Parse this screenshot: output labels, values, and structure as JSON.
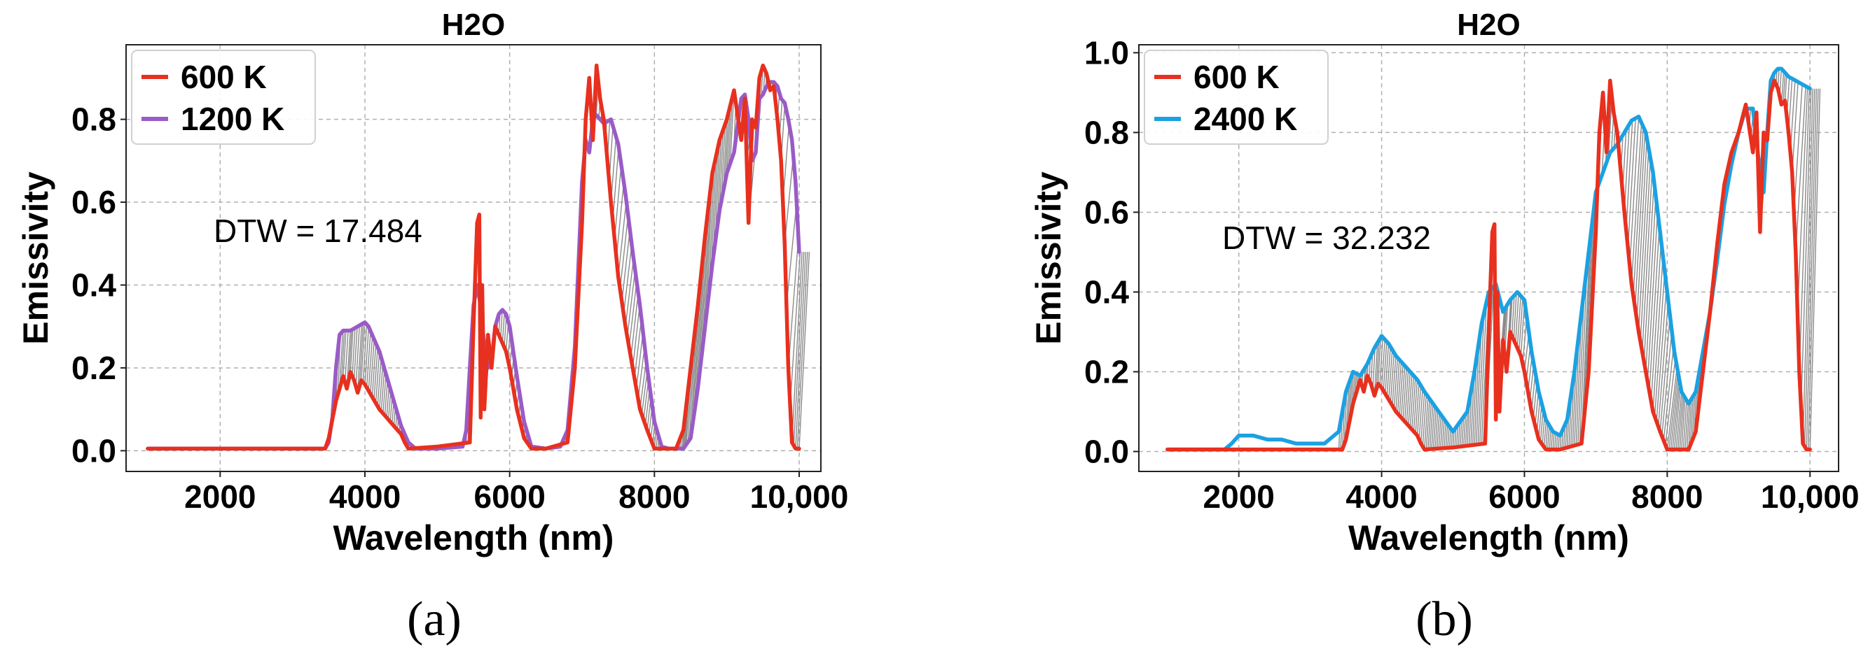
{
  "chart_data": [
    {
      "type": "line",
      "panel_label": "(a)",
      "title": "H2O",
      "xlabel": "Wavelength (nm)",
      "ylabel": "Emissivity",
      "xlim": [
        700,
        10300
      ],
      "ylim": [
        -0.05,
        0.98
      ],
      "xticks": [
        2000,
        4000,
        6000,
        8000,
        10000
      ],
      "xtick_labels": [
        "2000",
        "4000",
        "6000",
        "8000",
        "10,000"
      ],
      "yticks": [
        0.0,
        0.2,
        0.4,
        0.6,
        0.8
      ],
      "ytick_labels": [
        "0.0",
        "0.2",
        "0.4",
        "0.6",
        "0.8"
      ],
      "grid": true,
      "legend_position": "top-left",
      "annotation": "DTW = 17.484",
      "series": [
        {
          "name": "600 K",
          "color": "#e8301e",
          "x": [
            1000,
            2000,
            3000,
            3450,
            3500,
            3600,
            3700,
            3750,
            3800,
            3850,
            3900,
            3950,
            4000,
            4100,
            4200,
            4300,
            4400,
            4500,
            4550,
            4600,
            5000,
            5450,
            5500,
            5550,
            5580,
            5600,
            5620,
            5650,
            5700,
            5750,
            5800,
            5850,
            5900,
            5950,
            6000,
            6100,
            6200,
            6300,
            6500,
            6800,
            6900,
            7000,
            7050,
            7100,
            7150,
            7200,
            7250,
            7300,
            7350,
            7400,
            7500,
            7600,
            7700,
            7800,
            7900,
            8000,
            8100,
            8200,
            8300,
            8400,
            8500,
            8600,
            8700,
            8800,
            8900,
            9000,
            9100,
            9200,
            9250,
            9300,
            9350,
            9400,
            9450,
            9500,
            9550,
            9600,
            9650,
            9700,
            9750,
            9800,
            9850,
            9900,
            9950,
            10000
          ],
          "y": [
            0.005,
            0.005,
            0.005,
            0.005,
            0.03,
            0.12,
            0.18,
            0.15,
            0.19,
            0.17,
            0.14,
            0.17,
            0.16,
            0.13,
            0.1,
            0.08,
            0.06,
            0.04,
            0.02,
            0.005,
            0.01,
            0.02,
            0.3,
            0.55,
            0.57,
            0.08,
            0.4,
            0.1,
            0.28,
            0.2,
            0.3,
            0.28,
            0.26,
            0.24,
            0.2,
            0.1,
            0.03,
            0.005,
            0.005,
            0.02,
            0.2,
            0.55,
            0.8,
            0.9,
            0.75,
            0.93,
            0.85,
            0.8,
            0.7,
            0.6,
            0.42,
            0.3,
            0.2,
            0.1,
            0.05,
            0.005,
            0.005,
            0.005,
            0.005,
            0.05,
            0.2,
            0.35,
            0.52,
            0.67,
            0.75,
            0.8,
            0.87,
            0.75,
            0.85,
            0.55,
            0.8,
            0.78,
            0.9,
            0.93,
            0.91,
            0.87,
            0.88,
            0.8,
            0.7,
            0.5,
            0.2,
            0.02,
            0.005,
            0.005
          ]
        },
        {
          "name": "1200 K",
          "color": "#9a5bc7",
          "x": [
            1000,
            2000,
            3000,
            3450,
            3500,
            3550,
            3600,
            3650,
            3700,
            3800,
            3900,
            4000,
            4050,
            4100,
            4200,
            4300,
            4400,
            4500,
            4600,
            4700,
            5000,
            5350,
            5400,
            5450,
            5500,
            5550,
            5600,
            5650,
            5700,
            5750,
            5800,
            5850,
            5900,
            5950,
            6000,
            6100,
            6200,
            6300,
            6500,
            6700,
            6800,
            6900,
            7000,
            7050,
            7100,
            7150,
            7200,
            7300,
            7400,
            7500,
            7600,
            7700,
            7800,
            7900,
            8000,
            8100,
            8200,
            8300,
            8400,
            8500,
            8600,
            8700,
            8800,
            8900,
            9000,
            9100,
            9200,
            9250,
            9300,
            9350,
            9400,
            9450,
            9500,
            9550,
            9600,
            9650,
            9700,
            9750,
            9800,
            9850,
            9900,
            9950,
            10000
          ],
          "y": [
            0.005,
            0.005,
            0.005,
            0.005,
            0.02,
            0.08,
            0.2,
            0.28,
            0.29,
            0.29,
            0.3,
            0.31,
            0.3,
            0.28,
            0.24,
            0.18,
            0.12,
            0.06,
            0.02,
            0.005,
            0.005,
            0.01,
            0.05,
            0.2,
            0.35,
            0.4,
            0.35,
            0.25,
            0.2,
            0.22,
            0.3,
            0.33,
            0.34,
            0.33,
            0.3,
            0.18,
            0.07,
            0.01,
            0.005,
            0.01,
            0.05,
            0.25,
            0.65,
            0.75,
            0.72,
            0.8,
            0.81,
            0.79,
            0.8,
            0.74,
            0.62,
            0.48,
            0.35,
            0.2,
            0.07,
            0.01,
            0.005,
            0.005,
            0.005,
            0.03,
            0.15,
            0.3,
            0.45,
            0.58,
            0.67,
            0.72,
            0.85,
            0.86,
            0.8,
            0.7,
            0.72,
            0.85,
            0.86,
            0.88,
            0.89,
            0.89,
            0.88,
            0.85,
            0.84,
            0.8,
            0.75,
            0.65,
            0.48
          ]
        }
      ]
    },
    {
      "type": "line",
      "panel_label": "(b)",
      "title": "H2O",
      "xlabel": "Wavelength (nm)",
      "ylabel": "Emissivity",
      "xlim": [
        600,
        10400
      ],
      "ylim": [
        -0.05,
        1.02
      ],
      "xticks": [
        2000,
        4000,
        6000,
        8000,
        10000
      ],
      "xtick_labels": [
        "2000",
        "4000",
        "6000",
        "8000",
        "10,000"
      ],
      "yticks": [
        0.0,
        0.2,
        0.4,
        0.6,
        0.8,
        1.0
      ],
      "ytick_labels": [
        "0.0",
        "0.2",
        "0.4",
        "0.6",
        "0.8",
        "1.0"
      ],
      "grid": true,
      "legend_position": "top-left",
      "annotation": "DTW = 32.232",
      "series": [
        {
          "name": "600 K",
          "color": "#e8301e",
          "x": [
            1000,
            2000,
            3000,
            3450,
            3500,
            3600,
            3700,
            3750,
            3800,
            3850,
            3900,
            3950,
            4000,
            4100,
            4200,
            4300,
            4400,
            4500,
            4550,
            4600,
            5000,
            5450,
            5500,
            5550,
            5580,
            5600,
            5620,
            5650,
            5700,
            5750,
            5800,
            5850,
            5900,
            5950,
            6000,
            6100,
            6200,
            6300,
            6500,
            6800,
            6900,
            7000,
            7050,
            7100,
            7150,
            7200,
            7250,
            7300,
            7350,
            7400,
            7500,
            7600,
            7700,
            7800,
            7900,
            8000,
            8100,
            8200,
            8300,
            8400,
            8500,
            8600,
            8700,
            8800,
            8900,
            9000,
            9100,
            9200,
            9250,
            9300,
            9350,
            9400,
            9450,
            9500,
            9550,
            9600,
            9650,
            9700,
            9750,
            9800,
            9850,
            9900,
            9950,
            10000
          ],
          "y": [
            0.005,
            0.005,
            0.005,
            0.005,
            0.03,
            0.12,
            0.18,
            0.15,
            0.19,
            0.17,
            0.14,
            0.17,
            0.16,
            0.13,
            0.1,
            0.08,
            0.06,
            0.04,
            0.02,
            0.005,
            0.01,
            0.02,
            0.3,
            0.55,
            0.57,
            0.08,
            0.4,
            0.1,
            0.28,
            0.2,
            0.3,
            0.28,
            0.26,
            0.24,
            0.2,
            0.1,
            0.03,
            0.005,
            0.005,
            0.02,
            0.2,
            0.55,
            0.8,
            0.9,
            0.75,
            0.93,
            0.85,
            0.8,
            0.7,
            0.6,
            0.42,
            0.3,
            0.2,
            0.1,
            0.05,
            0.005,
            0.005,
            0.005,
            0.005,
            0.05,
            0.2,
            0.35,
            0.52,
            0.67,
            0.75,
            0.8,
            0.87,
            0.75,
            0.85,
            0.55,
            0.8,
            0.78,
            0.9,
            0.93,
            0.91,
            0.87,
            0.88,
            0.8,
            0.7,
            0.5,
            0.2,
            0.02,
            0.005,
            0.005
          ]
        },
        {
          "name": "2400 K",
          "color": "#1ba1e2",
          "x": [
            1000,
            1800,
            1900,
            2000,
            2200,
            2400,
            2600,
            2800,
            3000,
            3200,
            3400,
            3500,
            3600,
            3700,
            3800,
            3900,
            4000,
            4100,
            4200,
            4300,
            4400,
            4500,
            4600,
            4800,
            5000,
            5200,
            5300,
            5400,
            5500,
            5600,
            5700,
            5800,
            5900,
            6000,
            6100,
            6200,
            6300,
            6400,
            6500,
            6600,
            6700,
            6800,
            6900,
            7000,
            7100,
            7200,
            7300,
            7400,
            7500,
            7600,
            7700,
            7800,
            7900,
            8000,
            8100,
            8200,
            8300,
            8400,
            8500,
            8600,
            8700,
            8800,
            8900,
            9000,
            9100,
            9200,
            9300,
            9350,
            9400,
            9450,
            9500,
            9550,
            9600,
            9700,
            9800,
            9900,
            10000
          ],
          "y": [
            0.005,
            0.005,
            0.02,
            0.04,
            0.04,
            0.03,
            0.03,
            0.02,
            0.02,
            0.02,
            0.05,
            0.15,
            0.2,
            0.19,
            0.22,
            0.26,
            0.29,
            0.27,
            0.24,
            0.22,
            0.2,
            0.18,
            0.15,
            0.1,
            0.05,
            0.1,
            0.2,
            0.32,
            0.4,
            0.42,
            0.35,
            0.38,
            0.4,
            0.38,
            0.25,
            0.15,
            0.08,
            0.05,
            0.04,
            0.08,
            0.2,
            0.35,
            0.5,
            0.65,
            0.7,
            0.75,
            0.77,
            0.8,
            0.83,
            0.84,
            0.8,
            0.7,
            0.55,
            0.4,
            0.25,
            0.15,
            0.12,
            0.15,
            0.25,
            0.35,
            0.48,
            0.62,
            0.72,
            0.8,
            0.86,
            0.86,
            0.7,
            0.65,
            0.8,
            0.93,
            0.95,
            0.96,
            0.96,
            0.94,
            0.93,
            0.92,
            0.91
          ]
        }
      ]
    }
  ]
}
